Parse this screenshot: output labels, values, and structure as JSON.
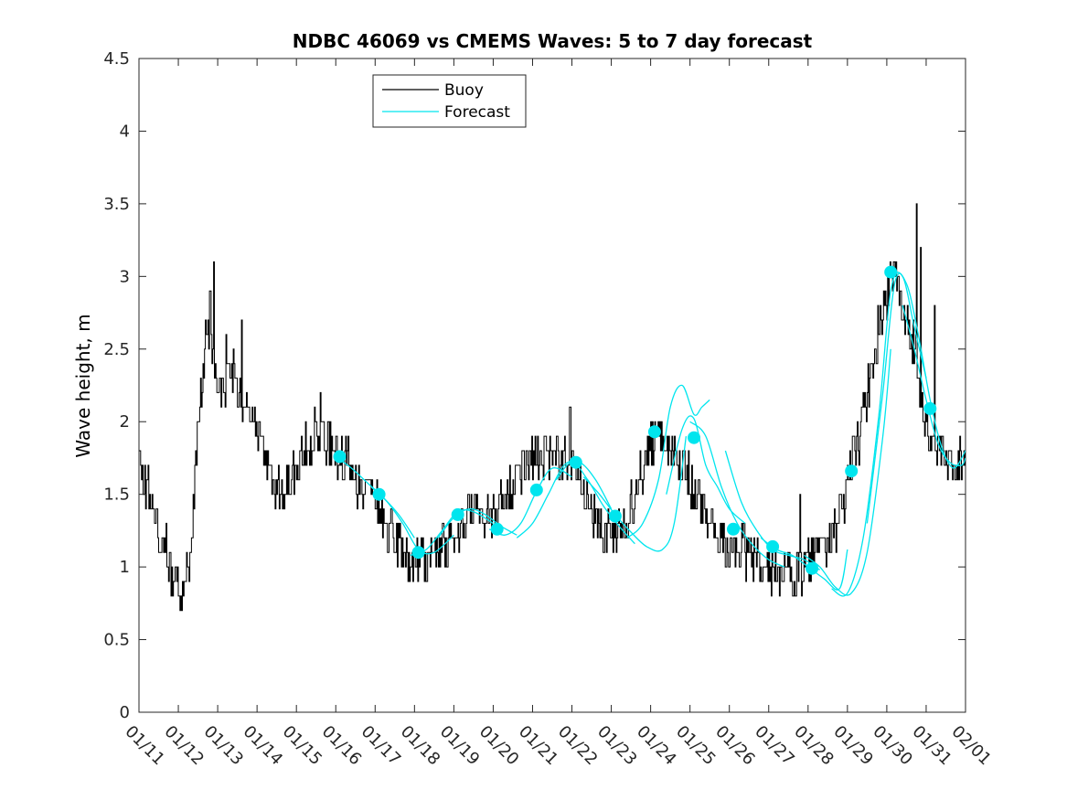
{
  "chart_data": {
    "type": "line",
    "title": "NDBC 46069 vs CMEMS Waves: 5 to 7 day forecast",
    "ylabel": "Wave height, m",
    "xlabel": "",
    "xlim": [
      0,
      21
    ],
    "ylim": [
      0,
      4.5
    ],
    "y_ticks": [
      0,
      0.5,
      1,
      1.5,
      2,
      2.5,
      3,
      3.5,
      4,
      4.5
    ],
    "y_tick_labels": [
      "0",
      "0.5",
      "1",
      "1.5",
      "2",
      "2.5",
      "3",
      "3.5",
      "4",
      "4.5"
    ],
    "x_ticks": [
      0,
      1,
      2,
      3,
      4,
      5,
      6,
      7,
      8,
      9,
      10,
      11,
      12,
      13,
      14,
      15,
      16,
      17,
      18,
      19,
      20,
      21
    ],
    "x_tick_labels": [
      "01/11",
      "01/12",
      "01/13",
      "01/14",
      "01/15",
      "01/16",
      "01/17",
      "01/18",
      "01/19",
      "01/20",
      "01/21",
      "01/22",
      "01/23",
      "01/24",
      "01/25",
      "01/26",
      "01/27",
      "01/28",
      "01/29",
      "01/30",
      "01/31",
      "02/01"
    ],
    "legend": {
      "position": "top-center",
      "entries": [
        {
          "label": "Buoy",
          "color": "#000000"
        },
        {
          "label": "Forecast",
          "color": "#00e5ee"
        }
      ]
    },
    "colors": {
      "buoy": "#000000",
      "forecast": "#00e5ee"
    },
    "buoy_anchors": {
      "x": [
        0,
        0.05,
        0.2,
        0.35,
        0.5,
        0.7,
        0.8,
        1.0,
        1.1,
        1.2,
        1.3,
        1.4,
        1.5,
        1.6,
        1.7,
        1.8,
        1.9,
        2.0,
        2.2,
        2.4,
        2.5,
        2.8,
        2.9,
        3.0,
        3.2,
        3.4,
        3.6,
        3.8,
        4.0,
        4.2,
        4.4,
        4.6,
        4.8,
        5.0,
        5.2,
        5.4,
        5.5,
        5.7,
        5.9,
        6.0,
        6.3,
        6.6,
        6.8,
        7.0,
        7.2,
        7.5,
        7.8,
        8.0,
        8.2,
        8.5,
        8.8,
        9.0,
        9.3,
        9.6,
        9.9,
        10.1,
        10.3,
        10.5,
        10.7,
        10.9,
        11.0,
        11.2,
        11.5,
        11.8,
        12.0,
        12.3,
        12.6,
        12.8,
        13.0,
        13.2,
        13.4,
        13.6,
        13.8,
        14.0,
        14.2,
        14.4,
        14.6,
        14.8,
        15.0,
        15.2,
        15.5,
        15.8,
        16.0,
        16.2,
        16.5,
        16.8,
        17.0,
        17.3,
        17.6,
        17.9,
        18.0,
        18.1,
        18.3,
        18.5,
        18.7,
        18.9,
        19.1,
        19.3,
        19.5,
        19.7,
        19.8,
        19.9,
        20.0,
        20.1,
        20.3,
        20.5,
        20.7,
        20.9,
        21.0
      ],
      "y": [
        1.9,
        1.6,
        1.55,
        1.45,
        1.25,
        1.1,
        0.95,
        0.85,
        0.75,
        0.9,
        1.0,
        1.5,
        2.0,
        2.3,
        2.55,
        2.6,
        2.5,
        2.3,
        2.25,
        2.4,
        2.2,
        2.05,
        2.0,
        1.95,
        1.8,
        1.6,
        1.5,
        1.55,
        1.7,
        1.85,
        1.9,
        1.95,
        1.85,
        1.8,
        1.75,
        1.7,
        1.6,
        1.55,
        1.5,
        1.45,
        1.3,
        1.15,
        1.05,
        1.0,
        1.05,
        1.1,
        1.15,
        1.2,
        1.3,
        1.4,
        1.3,
        1.4,
        1.5,
        1.65,
        1.7,
        1.75,
        1.8,
        1.8,
        1.75,
        1.7,
        1.7,
        1.6,
        1.4,
        1.25,
        1.2,
        1.3,
        1.5,
        1.7,
        1.85,
        1.9,
        1.85,
        1.8,
        1.7,
        1.6,
        1.5,
        1.35,
        1.25,
        1.15,
        1.1,
        1.1,
        1.1,
        1.05,
        1.0,
        0.95,
        0.95,
        0.95,
        1.0,
        1.1,
        1.2,
        1.4,
        1.6,
        1.75,
        1.9,
        2.2,
        2.5,
        2.8,
        3.0,
        2.9,
        2.7,
        2.5,
        2.3,
        2.1,
        2.0,
        1.9,
        1.8,
        1.7,
        1.75,
        1.75,
        1.8
      ]
    },
    "buoy_spikes": [
      {
        "x": 1.9,
        "y": 3.1
      },
      {
        "x": 1.8,
        "y": 2.9
      },
      {
        "x": 2.2,
        "y": 2.6
      },
      {
        "x": 2.6,
        "y": 2.7
      },
      {
        "x": 4.6,
        "y": 2.2
      },
      {
        "x": 10.95,
        "y": 2.05
      },
      {
        "x": 16.8,
        "y": 1.5
      },
      {
        "x": 19.75,
        "y": 3.5
      },
      {
        "x": 19.85,
        "y": 3.2
      },
      {
        "x": 20.2,
        "y": 2.8
      }
    ],
    "forecast_markers": {
      "x": [
        5.1,
        6.1,
        7.1,
        8.1,
        9.1,
        10.1,
        11.1,
        12.1,
        13.1,
        14.1,
        15.1,
        16.1,
        17.1,
        18.1,
        19.1,
        20.1
      ],
      "y": [
        1.76,
        1.5,
        1.1,
        1.36,
        1.26,
        1.53,
        1.72,
        1.35,
        1.93,
        1.89,
        1.26,
        1.14,
        0.99,
        1.66,
        3.03,
        2.09
      ]
    },
    "forecast_series": [
      {
        "x": [
          5.0,
          5.4,
          5.8,
          6.2,
          6.6,
          7.0
        ],
        "y": [
          1.76,
          1.68,
          1.58,
          1.48,
          1.36,
          1.2
        ]
      },
      {
        "x": [
          5.9,
          6.3,
          6.7,
          7.1,
          7.5,
          8.0
        ],
        "y": [
          1.55,
          1.45,
          1.3,
          1.12,
          1.1,
          1.22
        ]
      },
      {
        "x": [
          6.9,
          7.3,
          7.7,
          8.1,
          8.5,
          9.0
        ],
        "y": [
          1.08,
          1.12,
          1.25,
          1.38,
          1.38,
          1.3
        ]
      },
      {
        "x": [
          7.6,
          8.0,
          8.4,
          8.8,
          9.2,
          9.6
        ],
        "y": [
          1.2,
          1.34,
          1.4,
          1.36,
          1.28,
          1.22
        ]
      },
      {
        "x": [
          8.9,
          9.3,
          9.7,
          10.1,
          10.5,
          11.0
        ],
        "y": [
          1.26,
          1.22,
          1.3,
          1.52,
          1.68,
          1.62
        ]
      },
      {
        "x": [
          9.6,
          10.0,
          10.4,
          10.8,
          11.2,
          11.6,
          12.0
        ],
        "y": [
          1.2,
          1.3,
          1.5,
          1.7,
          1.72,
          1.6,
          1.4
        ]
      },
      {
        "x": [
          10.6,
          11.0,
          11.4,
          11.8,
          12.2,
          12.6
        ],
        "y": [
          1.6,
          1.72,
          1.6,
          1.42,
          1.28,
          1.16
        ]
      },
      {
        "x": [
          11.3,
          11.7,
          12.1,
          12.5,
          12.9,
          13.3,
          13.6,
          13.9
        ],
        "y": [
          1.62,
          1.5,
          1.36,
          1.24,
          1.14,
          1.12,
          1.3,
          1.9
        ]
      },
      {
        "x": [
          12.4,
          12.8,
          13.2,
          13.5,
          13.8,
          14.1,
          14.3,
          14.5
        ],
        "y": [
          1.2,
          1.3,
          1.6,
          2.1,
          2.25,
          2.05,
          2.1,
          2.15
        ]
      },
      {
        "x": [
          13.4,
          13.8,
          14.1,
          14.4,
          14.7,
          15.0,
          15.4
        ],
        "y": [
          1.5,
          1.95,
          2.02,
          1.7,
          1.55,
          1.4,
          1.3
        ]
      },
      {
        "x": [
          14.0,
          14.4,
          14.8,
          15.2,
          15.6,
          16.0,
          16.4
        ],
        "y": [
          2.0,
          1.9,
          1.55,
          1.3,
          1.15,
          1.05,
          1.0
        ]
      },
      {
        "x": [
          14.9,
          15.3,
          15.7,
          16.1,
          16.5,
          16.9,
          17.3
        ],
        "y": [
          1.8,
          1.45,
          1.25,
          1.12,
          1.08,
          1.05,
          0.98
        ]
      },
      {
        "x": [
          15.8,
          16.2,
          16.6,
          17.0,
          17.4,
          17.8,
          18.0
        ],
        "y": [
          1.2,
          1.12,
          1.08,
          1.0,
          0.92,
          0.85,
          1.12
        ]
      },
      {
        "x": [
          16.9,
          17.3,
          17.7,
          18.1,
          18.5,
          18.9,
          19.1
        ],
        "y": [
          1.08,
          1.0,
          0.86,
          0.82,
          1.1,
          1.9,
          2.5
        ]
      },
      {
        "x": [
          17.6,
          18.0,
          18.4,
          18.8,
          19.1,
          19.4,
          19.7,
          20.0
        ],
        "y": [
          0.85,
          0.82,
          1.2,
          2.05,
          2.9,
          3.0,
          2.65,
          2.3
        ]
      },
      {
        "x": [
          18.5,
          18.9,
          19.2,
          19.5,
          19.8,
          20.1,
          20.4,
          20.7,
          21.0
        ],
        "y": [
          1.3,
          2.2,
          2.95,
          2.95,
          2.6,
          2.15,
          1.82,
          1.68,
          1.8
        ]
      },
      {
        "x": [
          19.4,
          19.7,
          20.0,
          20.3,
          20.6,
          20.9,
          21.0
        ],
        "y": [
          2.8,
          2.5,
          2.15,
          1.85,
          1.72,
          1.7,
          1.75
        ]
      }
    ]
  }
}
